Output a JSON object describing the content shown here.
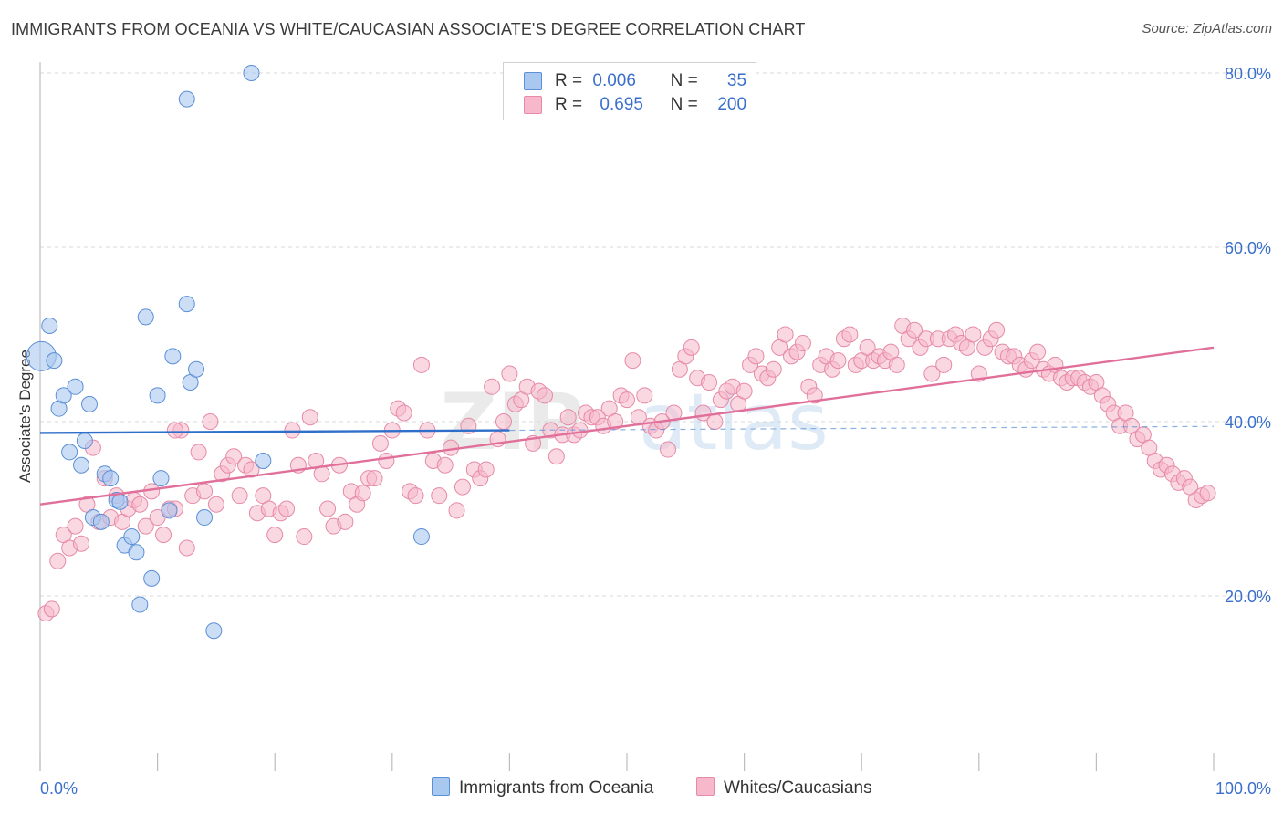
{
  "title": "IMMIGRANTS FROM OCEANIA VS WHITE/CAUCASIAN ASSOCIATE'S DEGREE CORRELATION CHART",
  "source": "Source: ZipAtlas.com",
  "watermark": {
    "zip": "ZIP",
    "atlas": "atlas"
  },
  "legend": {
    "r_label": "R =",
    "n_label": "N =",
    "rows": [
      {
        "r": "0.006",
        "n": "35"
      },
      {
        "r": "0.695",
        "n": "200"
      }
    ]
  },
  "chart_data": {
    "type": "scatter",
    "xlabel": "",
    "ylabel": "Associate's Degree",
    "xlim": [
      0,
      100
    ],
    "ylim": [
      0,
      80
    ],
    "x_tick_labels": [
      "0.0%",
      "100.0%"
    ],
    "y_ticks": [
      {
        "value": 20,
        "label": "20.0%"
      },
      {
        "value": 40,
        "label": "40.0%"
      },
      {
        "value": 60,
        "label": "60.0%"
      },
      {
        "value": 80,
        "label": "80.0%"
      }
    ],
    "grid": true,
    "colors": {
      "blue_fill": "#a9c8f0",
      "blue_stroke": "#5b8fd6",
      "blue_line": "#2f6fc9",
      "pink_fill": "#f6b8ca",
      "pink_stroke": "#e68aa7",
      "pink_line": "#e0709a",
      "grid": "#d8d8d8",
      "axis_text": "#3a6fcc"
    },
    "series": [
      {
        "name": "Immigrants from Oceania",
        "color": "#a9c8f0",
        "trend": {
          "x0": 0,
          "y0": 38.7,
          "x1": 40,
          "y1": 39.0,
          "dash_to_x": 100
        },
        "points": [
          [
            0.1,
            47.5,
            "large"
          ],
          [
            0.8,
            51.0
          ],
          [
            1.2,
            47.0
          ],
          [
            1.6,
            41.5
          ],
          [
            2.0,
            43.0
          ],
          [
            3.0,
            44.0
          ],
          [
            2.5,
            36.5
          ],
          [
            3.5,
            35.0
          ],
          [
            3.8,
            37.8
          ],
          [
            4.2,
            42.0
          ],
          [
            5.5,
            34.0
          ],
          [
            6.0,
            33.5
          ],
          [
            4.5,
            29.0
          ],
          [
            5.2,
            28.5
          ],
          [
            6.5,
            31.0
          ],
          [
            6.8,
            30.8
          ],
          [
            7.2,
            25.8
          ],
          [
            7.8,
            26.8
          ],
          [
            8.2,
            25.0
          ],
          [
            8.5,
            19.0
          ],
          [
            9.0,
            52.0
          ],
          [
            9.5,
            22.0
          ],
          [
            10.0,
            43.0
          ],
          [
            10.3,
            33.5
          ],
          [
            11.0,
            29.8
          ],
          [
            11.3,
            47.5
          ],
          [
            12.5,
            53.5
          ],
          [
            12.8,
            44.5
          ],
          [
            13.3,
            46.0
          ],
          [
            14.0,
            29.0
          ],
          [
            14.8,
            16.0
          ],
          [
            12.5,
            77.0
          ],
          [
            18.0,
            80.0
          ],
          [
            19.0,
            35.5
          ],
          [
            32.5,
            26.8
          ]
        ]
      },
      {
        "name": "Whites/Caucasians",
        "color": "#f6b8ca",
        "trend": {
          "x0": 0,
          "y0": 30.5,
          "x1": 100,
          "y1": 48.5
        },
        "points": [
          [
            0.5,
            18.0
          ],
          [
            1.0,
            18.5
          ],
          [
            1.5,
            24.0
          ],
          [
            2.0,
            27.0
          ],
          [
            2.5,
            25.5
          ],
          [
            3.0,
            28.0
          ],
          [
            3.5,
            26.0
          ],
          [
            4.0,
            30.5
          ],
          [
            4.5,
            37.0
          ],
          [
            5.0,
            28.5
          ],
          [
            5.5,
            33.5
          ],
          [
            6.0,
            29.0
          ],
          [
            6.5,
            31.5
          ],
          [
            7.0,
            28.5
          ],
          [
            7.5,
            30.0
          ],
          [
            8.0,
            31.0
          ],
          [
            8.5,
            30.5
          ],
          [
            9.0,
            28.0
          ],
          [
            9.5,
            32.0
          ],
          [
            10.0,
            29.0
          ],
          [
            10.5,
            27.0
          ],
          [
            11.0,
            30.0
          ],
          [
            11.5,
            30.0
          ],
          [
            12.0,
            39.0
          ],
          [
            12.5,
            25.5
          ],
          [
            13.0,
            31.5
          ],
          [
            13.5,
            36.5
          ],
          [
            14.0,
            32.0
          ],
          [
            14.5,
            40.0
          ],
          [
            15.0,
            30.5
          ],
          [
            15.5,
            34.0
          ],
          [
            16.0,
            35.0
          ],
          [
            16.5,
            36.0
          ],
          [
            17.0,
            31.5
          ],
          [
            17.5,
            35.0
          ],
          [
            18.0,
            34.5
          ],
          [
            18.5,
            29.5
          ],
          [
            19.0,
            31.5
          ],
          [
            19.5,
            30.0
          ],
          [
            20.0,
            27.0
          ],
          [
            20.5,
            29.5
          ],
          [
            21.0,
            30.0
          ],
          [
            21.5,
            39.0
          ],
          [
            22.0,
            35.0
          ],
          [
            22.5,
            26.8
          ],
          [
            23.0,
            40.5
          ],
          [
            23.5,
            35.5
          ],
          [
            24.0,
            34.0
          ],
          [
            24.5,
            30.0
          ],
          [
            25.0,
            28.0
          ],
          [
            25.5,
            35.0
          ],
          [
            26.0,
            28.5
          ],
          [
            26.5,
            32.0
          ],
          [
            27.0,
            30.5
          ],
          [
            27.5,
            31.8
          ],
          [
            28.0,
            33.5
          ],
          [
            28.5,
            33.5
          ],
          [
            29.0,
            37.5
          ],
          [
            29.5,
            35.5
          ],
          [
            30.0,
            39.0
          ],
          [
            30.5,
            41.5
          ],
          [
            31.0,
            41.0
          ],
          [
            31.5,
            32.0
          ],
          [
            32.0,
            31.5
          ],
          [
            32.5,
            46.5
          ],
          [
            33.0,
            39.0
          ],
          [
            33.5,
            35.5
          ],
          [
            34.0,
            31.5
          ],
          [
            34.5,
            35.0
          ],
          [
            35.0,
            37.0
          ],
          [
            35.5,
            29.8
          ],
          [
            36.0,
            32.5
          ],
          [
            36.5,
            39.5
          ],
          [
            37.0,
            34.5
          ],
          [
            37.5,
            33.5
          ],
          [
            38.0,
            34.5
          ],
          [
            38.5,
            44.0
          ],
          [
            39.0,
            38.0
          ],
          [
            39.5,
            40.0
          ],
          [
            40.0,
            45.5
          ],
          [
            40.5,
            42.0
          ],
          [
            41.0,
            42.5
          ],
          [
            41.5,
            44.0
          ],
          [
            42.0,
            37.5
          ],
          [
            42.5,
            43.5
          ],
          [
            43.0,
            43.0
          ],
          [
            43.5,
            39.0
          ],
          [
            44.0,
            36.0
          ],
          [
            44.5,
            38.5
          ],
          [
            45.0,
            40.5
          ],
          [
            45.5,
            38.5
          ],
          [
            46.0,
            39.0
          ],
          [
            46.5,
            41.0
          ],
          [
            47.0,
            40.5
          ],
          [
            47.5,
            40.5
          ],
          [
            48.0,
            39.5
          ],
          [
            48.5,
            41.5
          ],
          [
            49.0,
            40.0
          ],
          [
            49.5,
            43.0
          ],
          [
            50.0,
            42.5
          ],
          [
            50.5,
            47.0
          ],
          [
            51.0,
            40.5
          ],
          [
            51.5,
            43.0
          ],
          [
            52.0,
            39.5
          ],
          [
            52.5,
            39.0
          ],
          [
            53.0,
            40.0
          ],
          [
            53.5,
            36.8
          ],
          [
            54.0,
            41.0
          ],
          [
            54.5,
            46.0
          ],
          [
            55.0,
            47.5
          ],
          [
            55.5,
            48.5
          ],
          [
            56.0,
            45.0
          ],
          [
            56.5,
            41.0
          ],
          [
            57.0,
            44.5
          ],
          [
            57.5,
            40.0
          ],
          [
            58.0,
            42.5
          ],
          [
            58.5,
            43.5
          ],
          [
            59.0,
            44.0
          ],
          [
            59.5,
            42.0
          ],
          [
            60.0,
            43.5
          ],
          [
            60.5,
            46.5
          ],
          [
            61.0,
            47.5
          ],
          [
            61.5,
            45.5
          ],
          [
            62.0,
            45.0
          ],
          [
            62.5,
            46.0
          ],
          [
            63.0,
            48.5
          ],
          [
            63.5,
            50.0
          ],
          [
            64.0,
            47.5
          ],
          [
            64.5,
            48.0
          ],
          [
            65.0,
            49.0
          ],
          [
            65.5,
            44.0
          ],
          [
            66.0,
            43.0
          ],
          [
            66.5,
            46.5
          ],
          [
            67.0,
            47.5
          ],
          [
            67.5,
            46.0
          ],
          [
            68.0,
            47.0
          ],
          [
            68.5,
            49.5
          ],
          [
            69.0,
            50.0
          ],
          [
            69.5,
            46.5
          ],
          [
            70.0,
            47.0
          ],
          [
            70.5,
            48.5
          ],
          [
            71.0,
            47.0
          ],
          [
            71.5,
            47.5
          ],
          [
            72.0,
            47.0
          ],
          [
            72.5,
            48.0
          ],
          [
            73.0,
            46.5
          ],
          [
            73.5,
            51.0
          ],
          [
            74.0,
            49.5
          ],
          [
            74.5,
            50.5
          ],
          [
            75.0,
            48.5
          ],
          [
            75.5,
            49.5
          ],
          [
            76.0,
            45.5
          ],
          [
            76.5,
            49.5
          ],
          [
            77.0,
            46.5
          ],
          [
            77.5,
            49.5
          ],
          [
            78.0,
            50.0
          ],
          [
            78.5,
            49.0
          ],
          [
            79.0,
            48.5
          ],
          [
            79.5,
            50.0
          ],
          [
            80.0,
            45.5
          ],
          [
            80.5,
            48.5
          ],
          [
            81.0,
            49.5
          ],
          [
            81.5,
            50.5
          ],
          [
            82.0,
            48.0
          ],
          [
            82.5,
            47.5
          ],
          [
            83.0,
            47.5
          ],
          [
            83.5,
            46.5
          ],
          [
            84.0,
            46.0
          ],
          [
            84.5,
            47.0
          ],
          [
            85.0,
            48.0
          ],
          [
            85.5,
            46.0
          ],
          [
            86.0,
            45.5
          ],
          [
            86.5,
            46.5
          ],
          [
            87.0,
            45.0
          ],
          [
            87.5,
            44.5
          ],
          [
            88.0,
            45.0
          ],
          [
            88.5,
            45.0
          ],
          [
            89.0,
            44.5
          ],
          [
            89.5,
            44.0
          ],
          [
            90.0,
            44.5
          ],
          [
            90.5,
            43.0
          ],
          [
            91.0,
            42.0
          ],
          [
            91.5,
            41.0
          ],
          [
            92.0,
            39.5
          ],
          [
            92.5,
            41.0
          ],
          [
            93.0,
            39.5
          ],
          [
            93.5,
            38.0
          ],
          [
            94.0,
            38.5
          ],
          [
            94.5,
            37.0
          ],
          [
            95.0,
            35.5
          ],
          [
            95.5,
            34.5
          ],
          [
            96.0,
            35.0
          ],
          [
            96.5,
            34.0
          ],
          [
            97.0,
            33.0
          ],
          [
            97.5,
            33.5
          ],
          [
            98.0,
            32.5
          ],
          [
            98.5,
            31.0
          ],
          [
            99.0,
            31.5
          ],
          [
            99.5,
            31.8
          ],
          [
            11.5,
            39.0
          ]
        ]
      }
    ]
  },
  "bottom_legend": [
    {
      "label": "Immigrants from Oceania"
    },
    {
      "label": "Whites/Caucasians"
    }
  ]
}
